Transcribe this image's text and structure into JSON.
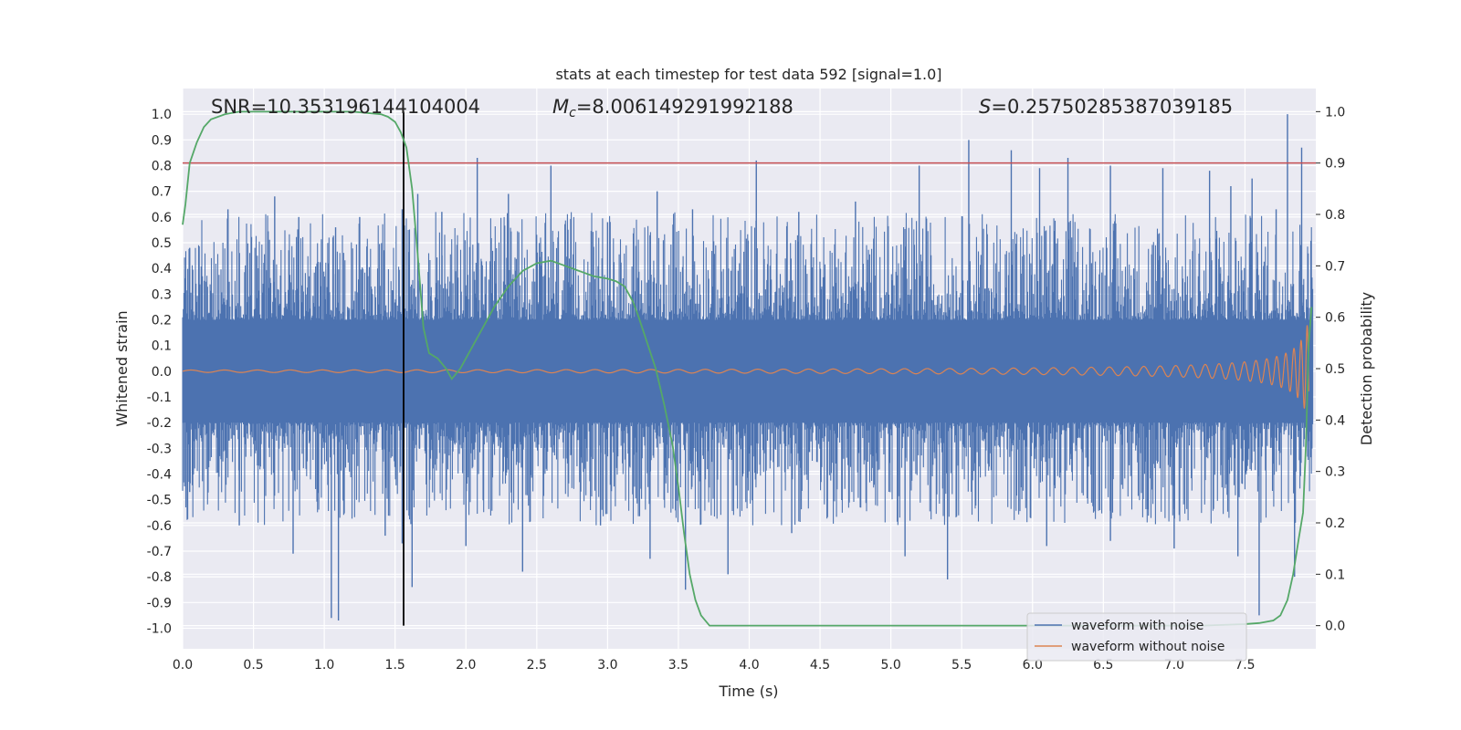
{
  "chart_data": {
    "type": "line",
    "title": "stats at each timestep for test data 592 [signal=1.0]",
    "xlabel": "Time (s)",
    "ylabel": "Whitened strain",
    "y2label": "Detection probability",
    "xlim": [
      0.0,
      8.0
    ],
    "ylim": [
      -1.08,
      1.1
    ],
    "y2lim": [
      -0.045,
      1.045
    ],
    "xticks": [
      "0.0",
      "0.5",
      "1.0",
      "1.5",
      "2.0",
      "2.5",
      "3.0",
      "3.5",
      "4.0",
      "4.5",
      "5.0",
      "5.5",
      "6.0",
      "6.5",
      "7.0",
      "7.5"
    ],
    "xtick_values": [
      0,
      0.5,
      1,
      1.5,
      2,
      2.5,
      3,
      3.5,
      4,
      4.5,
      5,
      5.5,
      6,
      6.5,
      7,
      7.5
    ],
    "yticks": [
      "1.0",
      "0.9",
      "0.8",
      "0.7",
      "0.6",
      "0.5",
      "0.4",
      "0.3",
      "0.2",
      "0.1",
      "0.0",
      "-0.1",
      "-0.2",
      "-0.3",
      "-0.4",
      "-0.5",
      "-0.6",
      "-0.7",
      "-0.8",
      "-0.9",
      "-1.0"
    ],
    "ytick_values": [
      1.0,
      0.9,
      0.8,
      0.7,
      0.6,
      0.5,
      0.4,
      0.3,
      0.2,
      0.1,
      0.0,
      -0.1,
      -0.2,
      -0.3,
      -0.4,
      -0.5,
      -0.6,
      -0.7,
      -0.8,
      -0.9,
      -1.0
    ],
    "y2ticks": [
      "1.0",
      "0.9",
      "0.8",
      "0.7",
      "0.6",
      "0.5",
      "0.4",
      "0.3",
      "0.2",
      "0.1",
      "0.0"
    ],
    "y2tick_values": [
      1.0,
      0.9,
      0.8,
      0.7,
      0.6,
      0.5,
      0.4,
      0.3,
      0.2,
      0.1,
      0.0
    ],
    "annotations": {
      "snr": "SNR=10.353196144104004",
      "mc_symbol": "M",
      "mc_sub": "c",
      "mc_value": "=8.006149291992188",
      "s_symbol": "S",
      "s_value": "=0.25750285387039185"
    },
    "threshold": {
      "value": 0.9,
      "axis": "y2",
      "color": "#c44e52"
    },
    "marker_time": 1.56,
    "legend": {
      "placement": "lower-right",
      "entries": [
        "waveform with noise",
        "waveform without noise"
      ]
    },
    "series": [
      {
        "name": "waveform with noise",
        "color": "#4c72b0",
        "axis": "y",
        "description": "whitened strain with noise, amplitude ~0.2 baseline with spikes up to ~1.0",
        "peak_times": [
          0.05,
          0.32,
          0.65,
          0.82,
          1.08,
          1.25,
          1.55,
          1.66,
          1.83,
          2.08,
          2.3,
          2.6,
          3.0,
          3.35,
          3.6,
          4.05,
          4.35,
          4.75,
          5.2,
          5.55,
          5.85,
          6.05,
          6.25,
          6.55,
          6.92,
          7.25,
          7.4,
          7.55,
          7.72,
          7.8,
          7.9
        ],
        "peak_values": [
          0.48,
          0.63,
          0.68,
          0.6,
          0.56,
          0.6,
          0.63,
          0.69,
          0.62,
          0.83,
          0.69,
          0.8,
          0.58,
          0.7,
          0.63,
          0.82,
          0.62,
          0.66,
          0.8,
          0.9,
          0.86,
          0.79,
          0.83,
          0.8,
          0.79,
          0.78,
          0.72,
          0.75,
          0.63,
          1.0,
          0.87
        ],
        "trough_times": [
          0.05,
          0.4,
          0.78,
          1.05,
          1.1,
          1.43,
          1.55,
          1.62,
          2.0,
          2.4,
          2.95,
          3.3,
          3.55,
          3.85,
          4.3,
          5.1,
          5.4,
          6.1,
          6.55,
          7.0,
          7.45,
          7.6,
          7.85
        ],
        "trough_values": [
          -0.47,
          -0.6,
          -0.71,
          -0.96,
          -0.97,
          -0.64,
          -0.67,
          -0.84,
          -0.68,
          -0.78,
          -0.6,
          -0.73,
          -0.85,
          -0.79,
          -0.63,
          -0.72,
          -0.81,
          -0.68,
          -0.66,
          -0.69,
          -0.72,
          -0.95,
          -0.8
        ]
      },
      {
        "name": "waveform without noise",
        "color": "#dd8452",
        "axis": "y",
        "description": "chirp signal, amplitude grows from ~0.015 at t=0 to ~0.5 near t=7.95"
      },
      {
        "name": "detection probability",
        "color": "#55a868",
        "axis": "y2",
        "x": [
          0.0,
          0.02,
          0.05,
          0.1,
          0.15,
          0.2,
          0.3,
          0.4,
          0.6,
          0.8,
          1.0,
          1.2,
          1.4,
          1.45,
          1.5,
          1.54,
          1.58,
          1.62,
          1.66,
          1.7,
          1.74,
          1.8,
          1.86,
          1.9,
          1.96,
          2.0,
          2.1,
          2.2,
          2.3,
          2.4,
          2.5,
          2.6,
          2.7,
          2.8,
          2.9,
          3.0,
          3.06,
          3.12,
          3.18,
          3.22,
          3.28,
          3.34,
          3.4,
          3.46,
          3.5,
          3.54,
          3.58,
          3.62,
          3.66,
          3.72,
          4.0,
          5.0,
          6.0,
          6.5,
          7.0,
          7.2,
          7.4,
          7.5,
          7.6,
          7.7,
          7.75,
          7.8,
          7.84,
          7.88,
          7.91,
          7.93,
          7.95,
          7.97
        ],
        "y": [
          0.78,
          0.82,
          0.9,
          0.94,
          0.97,
          0.985,
          0.995,
          1.0,
          1.0,
          1.0,
          1.0,
          1.0,
          0.995,
          0.99,
          0.98,
          0.96,
          0.93,
          0.85,
          0.72,
          0.58,
          0.53,
          0.52,
          0.5,
          0.48,
          0.5,
          0.52,
          0.57,
          0.62,
          0.66,
          0.69,
          0.705,
          0.71,
          0.7,
          0.69,
          0.68,
          0.675,
          0.67,
          0.66,
          0.63,
          0.6,
          0.55,
          0.5,
          0.43,
          0.35,
          0.27,
          0.18,
          0.1,
          0.05,
          0.02,
          0.0,
          0.0,
          0.0,
          0.0,
          0.0,
          0.0,
          0.0,
          0.002,
          0.003,
          0.005,
          0.01,
          0.02,
          0.05,
          0.1,
          0.17,
          0.22,
          0.35,
          0.55,
          0.62
        ]
      }
    ]
  }
}
